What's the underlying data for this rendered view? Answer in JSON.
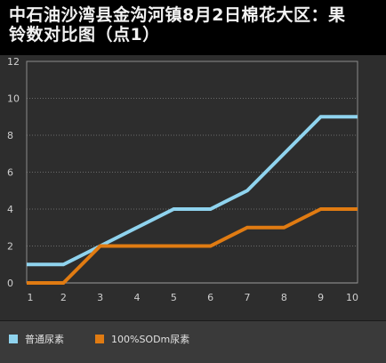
{
  "title_line1": "中石油沙湾县金沟河镇8月2日棉花大区：果",
  "title_line2": "铃数对比图（点1）",
  "colors": {
    "background": "#000000",
    "plot_bg": "#2d2d2d",
    "grid": "#6a6a6a",
    "axis_text": "#cfcfcf",
    "series1": "#8fd3ee",
    "series2": "#e07b12"
  },
  "chart_data": {
    "type": "line",
    "x": [
      1,
      2,
      3,
      4,
      5,
      6,
      7,
      8,
      9,
      10
    ],
    "xlim": [
      1,
      10
    ],
    "ylim": [
      0,
      12
    ],
    "yticks": [
      0,
      2,
      4,
      6,
      8,
      10,
      12
    ],
    "grid": true,
    "legend_position": "bottom-left",
    "xlabel": "",
    "ylabel": "",
    "series": [
      {
        "name": "普通尿素",
        "color": "#8fd3ee",
        "values": [
          1,
          1,
          2,
          3,
          4,
          4,
          5,
          7,
          9,
          9
        ]
      },
      {
        "name": "100%SODm尿素",
        "color": "#e07b12",
        "values": [
          0,
          0,
          2,
          2,
          2,
          2,
          3,
          3,
          4,
          4
        ]
      }
    ]
  }
}
